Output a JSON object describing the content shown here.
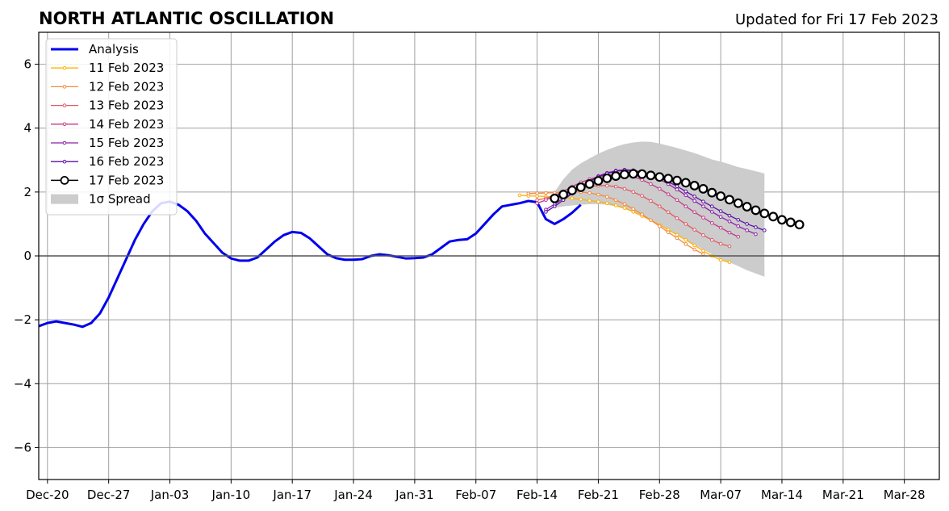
{
  "chart_data": {
    "type": "line",
    "title": "NORTH ATLANTIC OSCILLATION",
    "subtitle": "Updated for Fri 17 Feb 2023",
    "xlabel": "",
    "ylabel": "",
    "ylim": [
      -7,
      7
    ],
    "xlim": [
      "2022-12-19",
      "2023-04-01"
    ],
    "grid": true,
    "legend_position": "top-left",
    "x_ticks": [
      {
        "date": "2022-12-20",
        "label": "Dec-20"
      },
      {
        "date": "2022-12-27",
        "label": "Dec-27"
      },
      {
        "date": "2023-01-03",
        "label": "Jan-03"
      },
      {
        "date": "2023-01-10",
        "label": "Jan-10"
      },
      {
        "date": "2023-01-17",
        "label": "Jan-17"
      },
      {
        "date": "2023-01-24",
        "label": "Jan-24"
      },
      {
        "date": "2023-01-31",
        "label": "Jan-31"
      },
      {
        "date": "2023-02-07",
        "label": "Feb-07"
      },
      {
        "date": "2023-02-14",
        "label": "Feb-14"
      },
      {
        "date": "2023-02-21",
        "label": "Feb-21"
      },
      {
        "date": "2023-02-28",
        "label": "Feb-28"
      },
      {
        "date": "2023-03-07",
        "label": "Mar-07"
      },
      {
        "date": "2023-03-14",
        "label": "Mar-14"
      },
      {
        "date": "2023-03-21",
        "label": "Mar-21"
      },
      {
        "date": "2023-03-28",
        "label": "Mar-28"
      }
    ],
    "y_ticks": [
      {
        "value": -6,
        "label": "−6"
      },
      {
        "value": -4,
        "label": "−4"
      },
      {
        "value": -2,
        "label": "−2"
      },
      {
        "value": 0,
        "label": "0"
      },
      {
        "value": 2,
        "label": "2"
      },
      {
        "value": 4,
        "label": "4"
      },
      {
        "value": 6,
        "label": "6"
      }
    ],
    "analysis": {
      "name": "Analysis",
      "color": "#0000ee",
      "start_date": "2022-12-19",
      "values": [
        -2.2,
        -2.1,
        -2.05,
        -2.1,
        -2.15,
        -2.22,
        -2.1,
        -1.8,
        -1.3,
        -0.7,
        -0.1,
        0.5,
        1.0,
        1.4,
        1.65,
        1.7,
        1.6,
        1.4,
        1.1,
        0.7,
        0.4,
        0.1,
        -0.08,
        -0.15,
        -0.15,
        -0.05,
        0.2,
        0.45,
        0.65,
        0.75,
        0.72,
        0.55,
        0.3,
        0.05,
        -0.07,
        -0.12,
        -0.12,
        -0.1,
        0.0,
        0.05,
        0.02,
        -0.03,
        -0.08,
        -0.07,
        -0.05,
        0.05,
        0.25,
        0.45,
        0.5,
        0.52,
        0.7,
        1.0,
        1.3,
        1.55,
        1.6,
        1.65,
        1.72,
        1.68,
        1.15,
        1.0,
        1.15,
        1.35,
        1.6
      ]
    },
    "spread": {
      "name": "1σ Spread",
      "color": "#cccccc",
      "start_date": "2023-02-16",
      "upper": [
        2.0,
        2.4,
        2.7,
        2.9,
        3.05,
        3.2,
        3.32,
        3.42,
        3.5,
        3.55,
        3.58,
        3.57,
        3.52,
        3.45,
        3.38,
        3.3,
        3.22,
        3.12,
        3.02,
        2.95,
        2.87,
        2.78,
        2.72,
        2.65,
        2.58
      ],
      "lower": [
        1.5,
        1.55,
        1.58,
        1.6,
        1.62,
        1.62,
        1.6,
        1.55,
        1.47,
        1.38,
        1.27,
        1.13,
        0.97,
        0.8,
        0.65,
        0.5,
        0.35,
        0.2,
        0.05,
        -0.1,
        -0.2,
        -0.32,
        -0.45,
        -0.55,
        -0.65
      ]
    },
    "forecasts": [
      {
        "name": "11 Feb 2023",
        "color": "#ffb000",
        "start_date": "2023-02-12",
        "values": [
          1.9,
          1.88,
          1.87,
          1.86,
          1.85,
          1.83,
          1.8,
          1.77,
          1.73,
          1.7,
          1.65,
          1.58,
          1.5,
          1.38,
          1.25,
          1.12,
          0.97,
          0.82,
          0.66,
          0.5,
          0.33,
          0.16,
          0.0,
          -0.13,
          -0.2
        ]
      },
      {
        "name": "12 Feb 2023",
        "color": "#f58a40",
        "start_date": "2023-02-13",
        "values": [
          1.95,
          1.96,
          1.97,
          1.98,
          2.0,
          2.01,
          2.0,
          1.97,
          1.92,
          1.85,
          1.75,
          1.62,
          1.47,
          1.3,
          1.12,
          0.93,
          0.74,
          0.56,
          0.37,
          0.2,
          0.06
        ]
      },
      {
        "name": "13 Feb 2023",
        "color": "#e05a65",
        "start_date": "2023-02-14",
        "values": [
          1.75,
          1.8,
          1.88,
          1.97,
          2.05,
          2.12,
          2.17,
          2.2,
          2.2,
          2.17,
          2.1,
          2.0,
          1.88,
          1.72,
          1.55,
          1.37,
          1.18,
          1.0,
          0.82,
          0.65,
          0.5,
          0.38,
          0.3
        ]
      },
      {
        "name": "14 Feb 2023",
        "color": "#c03c8a",
        "start_date": "2023-02-14",
        "values": [
          1.65,
          1.75,
          1.88,
          2.02,
          2.17,
          2.3,
          2.4,
          2.48,
          2.52,
          2.55,
          2.53,
          2.48,
          2.38,
          2.25,
          2.1,
          1.93,
          1.75,
          1.55,
          1.37,
          1.2,
          1.03,
          0.88,
          0.73,
          0.6
        ]
      },
      {
        "name": "15 Feb 2023",
        "color": "#8c1fa8",
        "start_date": "2023-02-15",
        "values": [
          1.45,
          1.62,
          1.8,
          1.98,
          2.17,
          2.35,
          2.5,
          2.6,
          2.67,
          2.7,
          2.68,
          2.62,
          2.52,
          2.4,
          2.25,
          2.08,
          1.9,
          1.72,
          1.55,
          1.38,
          1.22,
          1.08,
          0.93,
          0.8,
          0.68
        ]
      },
      {
        "name": "16 Feb 2023",
        "color": "#5a0fa5",
        "start_date": "2023-02-15",
        "values": [
          1.38,
          1.55,
          1.75,
          1.95,
          2.15,
          2.33,
          2.48,
          2.58,
          2.65,
          2.68,
          2.67,
          2.62,
          2.55,
          2.45,
          2.32,
          2.18,
          2.02,
          1.86,
          1.7,
          1.55,
          1.4,
          1.26,
          1.13,
          1.0,
          0.9,
          0.8
        ]
      },
      {
        "name": "17 Feb 2023",
        "color": "#000000",
        "start_date": "2023-02-16",
        "values": [
          1.8,
          1.92,
          2.05,
          2.15,
          2.25,
          2.35,
          2.43,
          2.5,
          2.55,
          2.57,
          2.56,
          2.52,
          2.47,
          2.42,
          2.36,
          2.29,
          2.2,
          2.1,
          1.98,
          1.87,
          1.76,
          1.65,
          1.54,
          1.43,
          1.33,
          1.23,
          1.13,
          1.05,
          0.98
        ]
      }
    ]
  }
}
